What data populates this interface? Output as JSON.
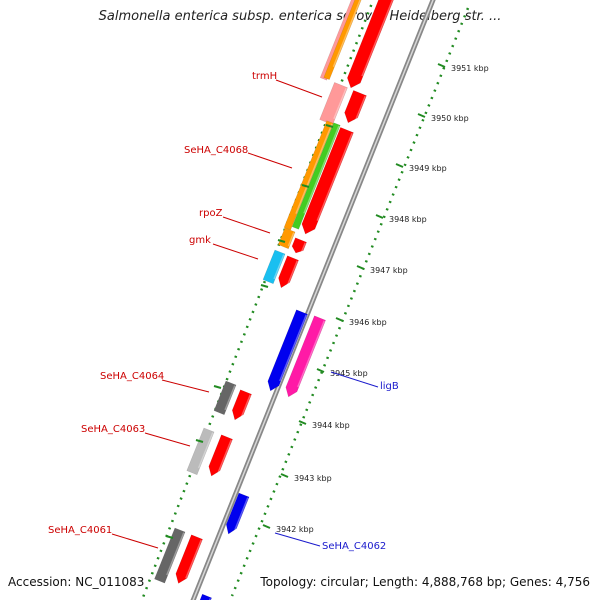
{
  "title": "Salmonella enterica subsp. enterica serovar Heidelberg str. ...",
  "footer": {
    "accession": "Accession: NC_011083",
    "summary": "Topology: circular; Length: 4,888,768 bp; Genes: 4,756"
  },
  "genome_labels": [
    {
      "name": "trmH",
      "color": "#cc0000"
    },
    {
      "name": "SeHA_C4068",
      "color": "#cc0000"
    },
    {
      "name": "rpoZ",
      "color": "#cc0000"
    },
    {
      "name": "gmk",
      "color": "#cc0000"
    },
    {
      "name": "SeHA_C4064",
      "color": "#cc0000"
    },
    {
      "name": "SeHA_C4063",
      "color": "#cc0000"
    },
    {
      "name": "SeHA_C4061",
      "color": "#cc0000"
    },
    {
      "name": "ligB",
      "color": "#1a1acc"
    },
    {
      "name": "SeHA_C4062",
      "color": "#1a1acc"
    }
  ],
  "kbp_ticks": [
    "3951 kbp",
    "3950 kbp",
    "3949 kbp",
    "3948 kbp",
    "3947 kbp",
    "3946 kbp",
    "3945 kbp",
    "3944 kbp",
    "3943 kbp",
    "3942 kbp"
  ],
  "colors": {
    "cds_red": "#ff0000",
    "cds_blue": "#0000ee",
    "cds_magenta": "#ff1aa6",
    "rna_orange": "#ff9900",
    "rna_green": "#44cc22",
    "rna_pink": "#ff9999",
    "rna_cyan": "#19bff0",
    "gray_dark": "#666666",
    "gray_light": "#bbbbbb",
    "backbone": "#888888",
    "label_red": "#cc0000",
    "label_blue": "#1a1acc",
    "dots": "#228b22"
  }
}
